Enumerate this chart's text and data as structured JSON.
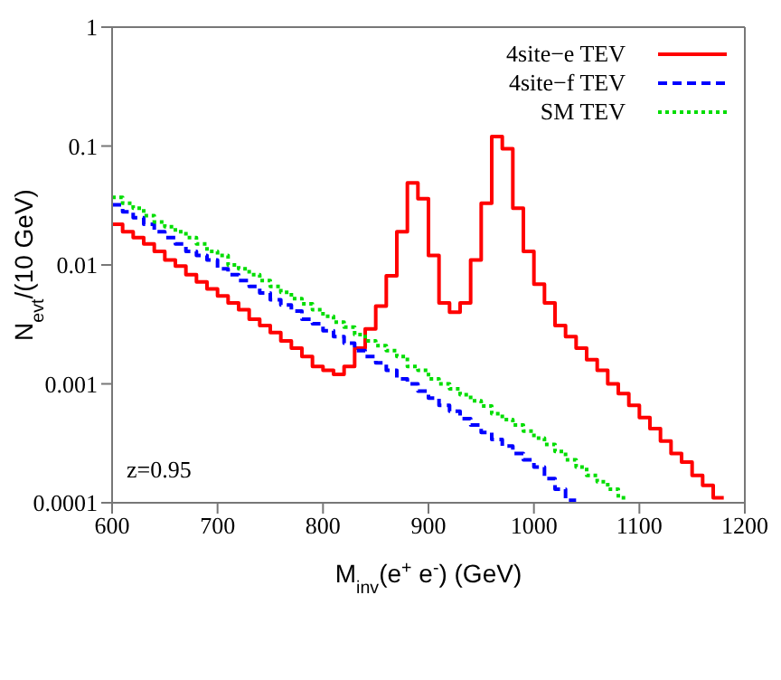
{
  "chart_data": {
    "type": "step",
    "xlabel": "M$_{inv}$(e$^{+}$ e$^{-}$) (GeV)",
    "ylabel": "N$_{evt}$/(10 GeV)",
    "series": [
      {
        "name": "4site−e TEV",
        "color": "#ff0000",
        "line_style": "solid",
        "x": [
          600,
          610,
          620,
          630,
          640,
          650,
          660,
          670,
          680,
          690,
          700,
          710,
          720,
          730,
          740,
          750,
          760,
          770,
          780,
          790,
          800,
          810,
          820,
          830,
          840,
          850,
          860,
          870,
          880,
          890,
          900,
          910,
          920,
          930,
          940,
          950,
          960,
          970,
          980,
          990,
          1000,
          1010,
          1020,
          1030,
          1040,
          1050,
          1060,
          1070,
          1080,
          1090,
          1100,
          1110,
          1120,
          1130,
          1140,
          1150,
          1160,
          1170,
          1180
        ],
        "values": [
          0.022,
          0.019,
          0.017,
          0.015,
          0.013,
          0.011,
          0.0098,
          0.0083,
          0.0072,
          0.0063,
          0.0055,
          0.0048,
          0.0042,
          0.0035,
          0.0031,
          0.0027,
          0.0023,
          0.002,
          0.0017,
          0.0014,
          0.0013,
          0.0012,
          0.0014,
          0.002,
          0.0029,
          0.0045,
          0.0081,
          0.019,
          0.049,
          0.036,
          0.012,
          0.0048,
          0.004,
          0.0048,
          0.011,
          0.033,
          0.12,
          0.095,
          0.03,
          0.013,
          0.0069,
          0.0048,
          0.0031,
          0.0025,
          0.002,
          0.0016,
          0.0013,
          0.001,
          0.00083,
          0.00066,
          0.00052,
          0.00042,
          0.00033,
          0.00026,
          0.00022,
          0.00017,
          0.00014,
          0.00011,
          0.00011
        ]
      },
      {
        "name": "4site−f TEV",
        "color": "#0000ff",
        "line_style": "dashed",
        "x": [
          600,
          610,
          620,
          630,
          640,
          650,
          660,
          670,
          680,
          690,
          700,
          710,
          720,
          730,
          740,
          750,
          760,
          770,
          780,
          790,
          800,
          810,
          820,
          830,
          840,
          850,
          860,
          870,
          880,
          890,
          900,
          910,
          920,
          930,
          940,
          950,
          960,
          970,
          980,
          990,
          1000,
          1010,
          1020,
          1030,
          1040
        ],
        "values": [
          0.032,
          0.028,
          0.025,
          0.022,
          0.019,
          0.017,
          0.015,
          0.013,
          0.012,
          0.011,
          0.0093,
          0.0083,
          0.0074,
          0.0066,
          0.0058,
          0.0051,
          0.0046,
          0.0041,
          0.0035,
          0.0032,
          0.0028,
          0.0025,
          0.0022,
          0.0019,
          0.0017,
          0.0015,
          0.0013,
          0.0011,
          0.001,
          0.00087,
          0.00076,
          0.00066,
          0.00059,
          0.00051,
          0.00045,
          0.00039,
          0.00034,
          0.0003,
          0.00026,
          0.00023,
          0.0002,
          0.00016,
          0.00013,
          0.000105,
          0.000105
        ]
      },
      {
        "name": "SM TEV",
        "color": "#00dd00",
        "line_style": "dotted",
        "x": [
          600,
          610,
          620,
          630,
          640,
          650,
          660,
          670,
          680,
          690,
          700,
          710,
          720,
          730,
          740,
          750,
          760,
          770,
          780,
          790,
          800,
          810,
          820,
          830,
          840,
          850,
          860,
          870,
          880,
          890,
          900,
          910,
          920,
          930,
          940,
          950,
          960,
          970,
          980,
          990,
          1000,
          1010,
          1020,
          1030,
          1040,
          1050,
          1060,
          1070,
          1080,
          1090
        ],
        "values": [
          0.037,
          0.033,
          0.03,
          0.026,
          0.023,
          0.021,
          0.019,
          0.017,
          0.015,
          0.013,
          0.012,
          0.01,
          0.0093,
          0.0083,
          0.0074,
          0.0066,
          0.0059,
          0.0052,
          0.0047,
          0.0042,
          0.0037,
          0.0033,
          0.003,
          0.0026,
          0.0023,
          0.0021,
          0.0019,
          0.0017,
          0.0014,
          0.0013,
          0.0011,
          0.001,
          0.00091,
          0.00081,
          0.00072,
          0.00065,
          0.00056,
          0.0005,
          0.00045,
          0.0004,
          0.00035,
          0.00031,
          0.00027,
          0.00023,
          0.0002,
          0.00017,
          0.00015,
          0.00013,
          0.00011,
          0.00011
        ]
      }
    ],
    "xlim": [
      600,
      1200
    ],
    "xticks": [
      600,
      700,
      800,
      900,
      1000,
      1100,
      1200
    ],
    "ylim": [
      0.0001,
      1
    ],
    "yticks": [
      0.0001,
      0.001,
      0.01,
      0.1,
      1
    ],
    "log": "y",
    "legend": "top right",
    "annotations": [
      "z=0.95"
    ]
  }
}
